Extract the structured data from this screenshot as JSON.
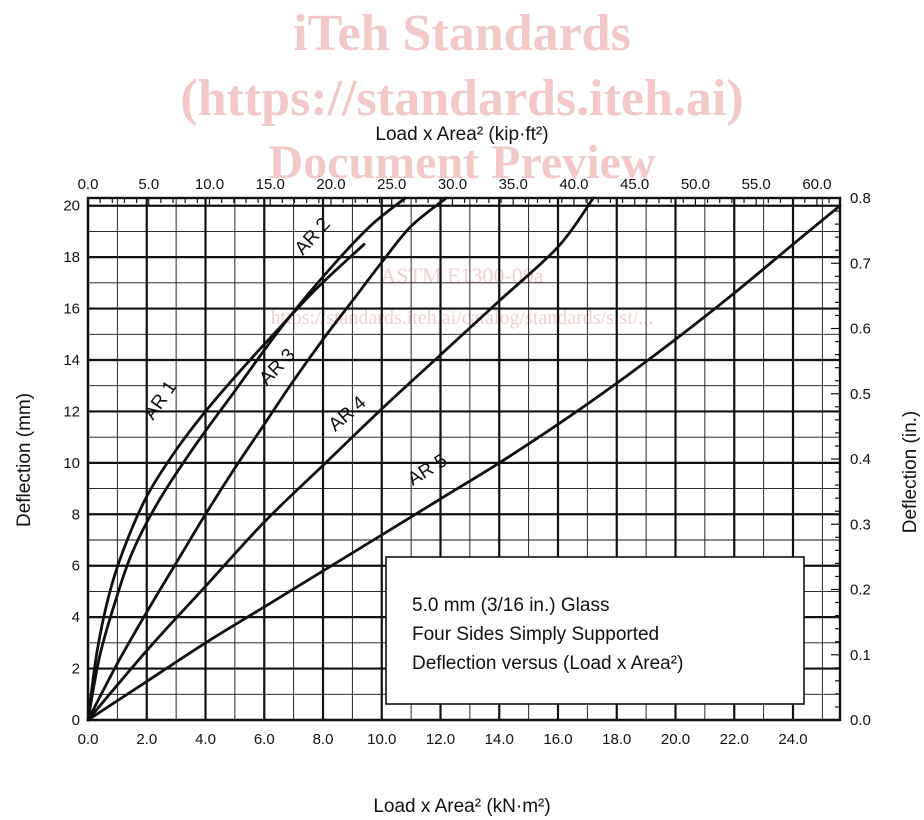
{
  "watermark": {
    "line1": "iTeh Standards",
    "line2": "(https://standards.iteh.ai)",
    "line3": "Document Preview",
    "line4": "ASTM E1300-09a",
    "line5": "https://standards.iteh.ai/catalog/standards/sist/..."
  },
  "chart_data": {
    "type": "line",
    "x_bottom": {
      "label": "Load x Area² (kN·m²)",
      "ticks": [
        0.0,
        2.0,
        4.0,
        6.0,
        8.0,
        10.0,
        12.0,
        14.0,
        16.0,
        18.0,
        20.0,
        22.0,
        24.0
      ],
      "range": [
        0,
        25.6
      ]
    },
    "x_top": {
      "label": "Load x Area² (kip·ft²)",
      "ticks": [
        0.0,
        5.0,
        10.0,
        15.0,
        20.0,
        25.0,
        30.0,
        35.0,
        40.0,
        45.0,
        50.0,
        55.0,
        60.0
      ],
      "range": [
        0,
        61.9
      ]
    },
    "y_left": {
      "label": "Deflection (mm)",
      "ticks": [
        0,
        2,
        4,
        6,
        8,
        10,
        12,
        14,
        16,
        18,
        20
      ],
      "range": [
        0,
        20.3
      ]
    },
    "y_right": {
      "label": "Deflection (in.)",
      "ticks": [
        0.0,
        0.1,
        0.2,
        0.3,
        0.4,
        0.5,
        0.6,
        0.7,
        0.8
      ],
      "range": [
        0,
        0.8
      ]
    },
    "grid": true,
    "series": [
      {
        "name": "AR 1",
        "x": [
          0,
          0.3,
          0.7,
          1.2,
          2.0,
          3.0,
          4.0,
          5.2,
          6.4,
          7.8,
          9.4
        ],
        "y": [
          0,
          2.6,
          4.8,
          6.6,
          8.7,
          10.5,
          12.0,
          13.6,
          15.1,
          16.8,
          18.5
        ]
      },
      {
        "name": "AR 2",
        "x": [
          0,
          0.4,
          0.9,
          1.5,
          2.4,
          3.6,
          5.0,
          6.6,
          8.2,
          9.6,
          10.8
        ],
        "y": [
          0,
          2.5,
          4.5,
          6.5,
          8.5,
          10.6,
          12.8,
          15.3,
          17.5,
          19.2,
          20.3
        ]
      },
      {
        "name": "AR 3",
        "x": [
          0,
          1.0,
          2.0,
          3.0,
          4.0,
          5.0,
          6.0,
          7.0,
          8.0,
          9.0,
          10.0,
          11.0,
          12.2
        ],
        "y": [
          0,
          2.2,
          4.2,
          6.1,
          8.0,
          9.8,
          11.5,
          13.2,
          14.8,
          16.3,
          17.8,
          19.2,
          20.3
        ]
      },
      {
        "name": "AR 4",
        "x": [
          0,
          2.0,
          4.0,
          6.0,
          8.0,
          10.0,
          12.0,
          14.0,
          16.0,
          17.2
        ],
        "y": [
          0,
          2.7,
          5.2,
          7.7,
          9.9,
          12.1,
          14.2,
          16.3,
          18.4,
          20.3
        ]
      },
      {
        "name": "AR 5",
        "x": [
          0,
          2.0,
          4.0,
          6.0,
          8.0,
          10.0,
          12.0,
          14.0,
          16.0,
          18.0,
          20.0,
          22.0,
          24.0,
          25.6
        ],
        "y": [
          0,
          1.5,
          3.0,
          4.4,
          5.8,
          7.2,
          8.6,
          10.0,
          11.5,
          13.1,
          14.8,
          16.6,
          18.5,
          20.0
        ]
      }
    ]
  },
  "legend_box": {
    "line1": "5.0 mm (3/16 in.) Glass",
    "line2": "Four Sides Simply Supported",
    "line3": "Deflection versus (Load x Area²)"
  },
  "colors": {
    "ink": "#111111",
    "watermark": "#f2c9c9",
    "background": "#ffffff"
  }
}
